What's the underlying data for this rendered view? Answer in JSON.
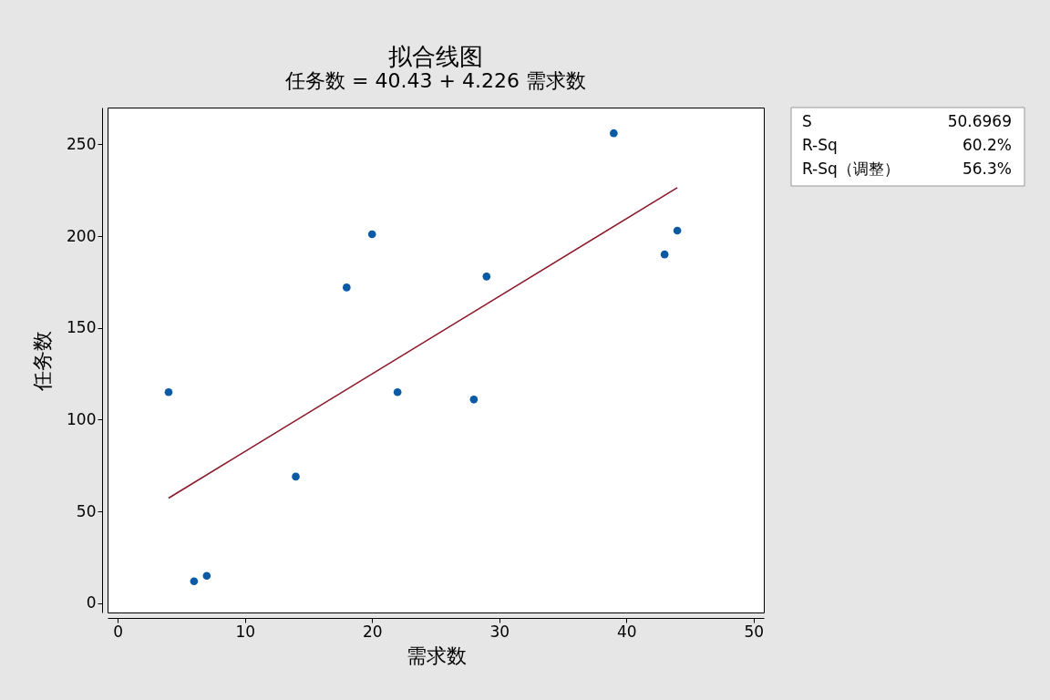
{
  "chart_data": {
    "type": "scatter",
    "title": "拟合线图",
    "subtitle": "任务数 = 40.43 + 4.226 需求数",
    "xlabel": "需求数",
    "ylabel": "任务数",
    "xlim": [
      -0.8,
      50.8
    ],
    "ylim": [
      -5,
      270
    ],
    "xticks": [
      0,
      10,
      20,
      30,
      40,
      50
    ],
    "yticks": [
      0,
      50,
      100,
      150,
      200,
      250
    ],
    "grid": false,
    "marker": "circle",
    "line_style": "solid",
    "annotations": [
      "S",
      "50.6969",
      "R-Sq",
      "60.2%",
      "R-Sq（调整）",
      "56.3%"
    ],
    "series": [
      {
        "color": "#0b5aa5",
        "x": [
          4,
          6,
          7,
          14,
          18,
          20,
          22,
          28,
          29,
          39,
          43,
          44
        ],
        "values": [
          115,
          12,
          15,
          69,
          172,
          201,
          115,
          111,
          178,
          256,
          190,
          203
        ]
      },
      {
        "type": "line",
        "color": "#8b1a2a",
        "marker": "none",
        "x": [
          4,
          44
        ],
        "values": [
          57.3,
          226.4
        ]
      }
    ]
  }
}
